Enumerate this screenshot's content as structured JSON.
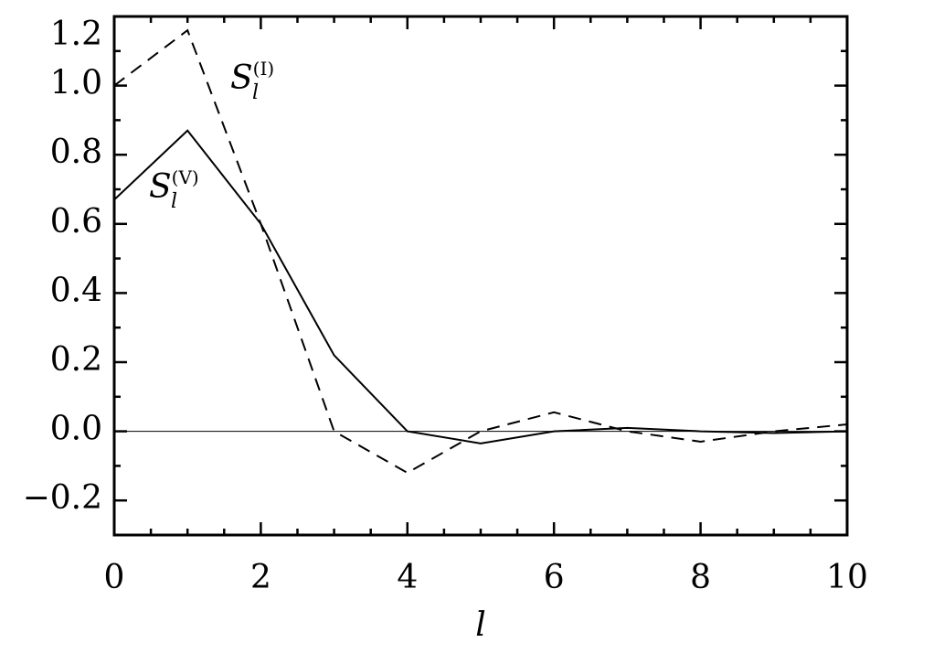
{
  "chart_data": {
    "type": "line",
    "xlabel": "l",
    "x": [
      0,
      1,
      2,
      3,
      4,
      5,
      6,
      7,
      8,
      9,
      10
    ],
    "series": [
      {
        "color": "#000000",
        "dash": "solid",
        "values": [
          0.67,
          0.87,
          0.6,
          0.22,
          0.0,
          -0.035,
          0.0,
          0.01,
          0.0,
          -0.005,
          0.0
        ]
      },
      {
        "color": "#000000",
        "dash": "dashed",
        "values": [
          1.0,
          1.16,
          0.6,
          0.0,
          -0.12,
          0.0,
          0.055,
          0.0,
          -0.03,
          0.0,
          0.02
        ]
      }
    ],
    "annotations": [
      {
        "text": "S",
        "sub": "l",
        "sup": "(I)"
      },
      {
        "text": "S",
        "sub": "l",
        "sup": "(V)"
      }
    ],
    "xlim": [
      0,
      10
    ],
    "ylim": [
      -0.3,
      1.2
    ],
    "xticks": [
      0,
      2,
      4,
      6,
      8,
      10
    ],
    "yticks": [
      {
        "value": -0.2,
        "label": "−0.2"
      },
      {
        "value": 0,
        "label": "0.0"
      },
      {
        "value": 0.2,
        "label": "0.2"
      },
      {
        "value": 0.4,
        "label": "0.4"
      },
      {
        "value": 0.6,
        "label": "0.6"
      },
      {
        "value": 0.8,
        "label": "0.8"
      },
      {
        "value": 1.0,
        "label": "1.0"
      },
      {
        "value": 1.2,
        "label": "1.2"
      }
    ],
    "xminorticks": [
      0.5,
      1,
      1.5,
      2.5,
      3,
      3.5,
      4.5,
      5,
      5.5,
      6.5,
      7,
      7.5,
      8.5,
      9,
      9.5
    ],
    "yminorticks": [
      -0.3,
      -0.1,
      0.1,
      0.3,
      0.5,
      0.7,
      0.9,
      1.1
    ],
    "hline": 0,
    "grid": false
  }
}
